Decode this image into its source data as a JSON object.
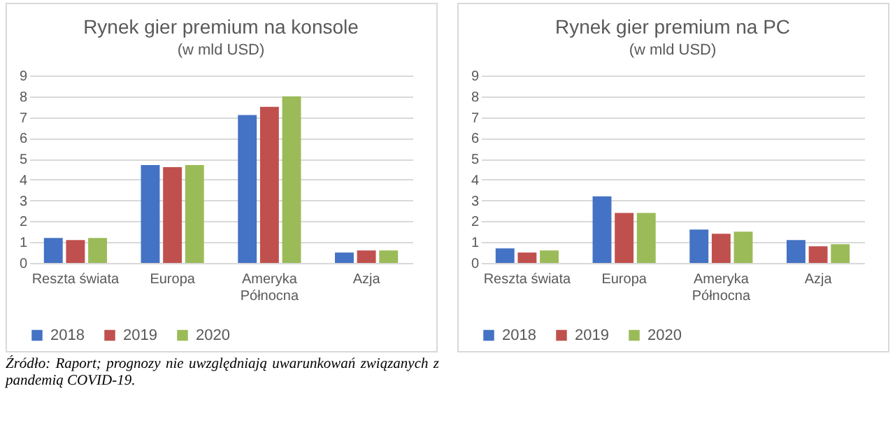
{
  "chart_data": [
    {
      "type": "bar",
      "title": "Rynek gier premium na konsole",
      "subtitle": "(w mld USD)",
      "categories": [
        "Reszta świata",
        "Europa",
        "Ameryka Północna",
        "Azja"
      ],
      "series": [
        {
          "name": "2018",
          "color": "#4472c4",
          "values": [
            1.2,
            4.7,
            7.1,
            0.5
          ]
        },
        {
          "name": "2019",
          "color": "#c0504d",
          "values": [
            1.1,
            4.6,
            7.5,
            0.6
          ]
        },
        {
          "name": "2020",
          "color": "#9bbb59",
          "values": [
            1.2,
            4.7,
            8.0,
            0.6
          ]
        }
      ],
      "ylim": [
        0,
        9
      ],
      "yticks": [
        0,
        1,
        2,
        3,
        4,
        5,
        6,
        7,
        8,
        9
      ],
      "grid": "y",
      "legend": "bottom",
      "annotations": [
        "Źródło: Raport; prognozy nie uwzględniają uwarunkowań związanych z pandemią COVID-19."
      ]
    },
    {
      "type": "bar",
      "title": "Rynek gier premium na PC",
      "subtitle": "(w mld USD)",
      "categories": [
        "Reszta świata",
        "Europa",
        "Ameryka Północna",
        "Azja"
      ],
      "series": [
        {
          "name": "2018",
          "color": "#4472c4",
          "values": [
            0.7,
            3.2,
            1.6,
            1.1
          ]
        },
        {
          "name": "2019",
          "color": "#c0504d",
          "values": [
            0.5,
            2.4,
            1.4,
            0.8
          ]
        },
        {
          "name": "2020",
          "color": "#9bbb59",
          "values": [
            0.6,
            2.4,
            1.5,
            0.9
          ]
        }
      ],
      "ylim": [
        0,
        9
      ],
      "yticks": [
        0,
        1,
        2,
        3,
        4,
        5,
        6,
        7,
        8,
        9
      ],
      "grid": "y",
      "legend": "bottom"
    }
  ]
}
